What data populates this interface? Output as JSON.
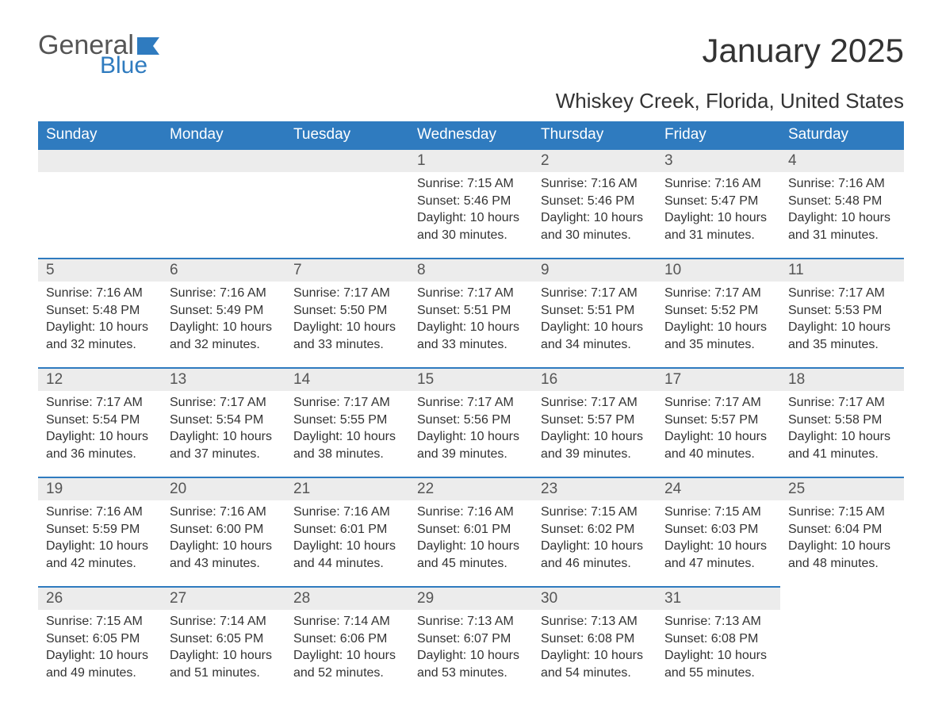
{
  "logo": {
    "general": "General",
    "blue": "Blue"
  },
  "title": "January 2025",
  "location": "Whiskey Creek, Florida, United States",
  "colors": {
    "header_bg": "#2f7bbf",
    "header_text": "#ffffff",
    "day_number_bg": "#ececec",
    "day_border_top": "#2f7bbf",
    "body_text": "#333333",
    "logo_gray": "#555555",
    "logo_blue": "#2f7bbf",
    "background": "#ffffff"
  },
  "typography": {
    "title_fontsize": 42,
    "location_fontsize": 26,
    "header_fontsize": 19,
    "daynum_fontsize": 19,
    "body_fontsize": 16
  },
  "day_headers": [
    "Sunday",
    "Monday",
    "Tuesday",
    "Wednesday",
    "Thursday",
    "Friday",
    "Saturday"
  ],
  "weeks": [
    [
      null,
      null,
      null,
      {
        "n": "1",
        "sunrise": "7:15 AM",
        "sunset": "5:46 PM",
        "daylight": "10 hours and 30 minutes."
      },
      {
        "n": "2",
        "sunrise": "7:16 AM",
        "sunset": "5:46 PM",
        "daylight": "10 hours and 30 minutes."
      },
      {
        "n": "3",
        "sunrise": "7:16 AM",
        "sunset": "5:47 PM",
        "daylight": "10 hours and 31 minutes."
      },
      {
        "n": "4",
        "sunrise": "7:16 AM",
        "sunset": "5:48 PM",
        "daylight": "10 hours and 31 minutes."
      }
    ],
    [
      {
        "n": "5",
        "sunrise": "7:16 AM",
        "sunset": "5:48 PM",
        "daylight": "10 hours and 32 minutes."
      },
      {
        "n": "6",
        "sunrise": "7:16 AM",
        "sunset": "5:49 PM",
        "daylight": "10 hours and 32 minutes."
      },
      {
        "n": "7",
        "sunrise": "7:17 AM",
        "sunset": "5:50 PM",
        "daylight": "10 hours and 33 minutes."
      },
      {
        "n": "8",
        "sunrise": "7:17 AM",
        "sunset": "5:51 PM",
        "daylight": "10 hours and 33 minutes."
      },
      {
        "n": "9",
        "sunrise": "7:17 AM",
        "sunset": "5:51 PM",
        "daylight": "10 hours and 34 minutes."
      },
      {
        "n": "10",
        "sunrise": "7:17 AM",
        "sunset": "5:52 PM",
        "daylight": "10 hours and 35 minutes."
      },
      {
        "n": "11",
        "sunrise": "7:17 AM",
        "sunset": "5:53 PM",
        "daylight": "10 hours and 35 minutes."
      }
    ],
    [
      {
        "n": "12",
        "sunrise": "7:17 AM",
        "sunset": "5:54 PM",
        "daylight": "10 hours and 36 minutes."
      },
      {
        "n": "13",
        "sunrise": "7:17 AM",
        "sunset": "5:54 PM",
        "daylight": "10 hours and 37 minutes."
      },
      {
        "n": "14",
        "sunrise": "7:17 AM",
        "sunset": "5:55 PM",
        "daylight": "10 hours and 38 minutes."
      },
      {
        "n": "15",
        "sunrise": "7:17 AM",
        "sunset": "5:56 PM",
        "daylight": "10 hours and 39 minutes."
      },
      {
        "n": "16",
        "sunrise": "7:17 AM",
        "sunset": "5:57 PM",
        "daylight": "10 hours and 39 minutes."
      },
      {
        "n": "17",
        "sunrise": "7:17 AM",
        "sunset": "5:57 PM",
        "daylight": "10 hours and 40 minutes."
      },
      {
        "n": "18",
        "sunrise": "7:17 AM",
        "sunset": "5:58 PM",
        "daylight": "10 hours and 41 minutes."
      }
    ],
    [
      {
        "n": "19",
        "sunrise": "7:16 AM",
        "sunset": "5:59 PM",
        "daylight": "10 hours and 42 minutes."
      },
      {
        "n": "20",
        "sunrise": "7:16 AM",
        "sunset": "6:00 PM",
        "daylight": "10 hours and 43 minutes."
      },
      {
        "n": "21",
        "sunrise": "7:16 AM",
        "sunset": "6:01 PM",
        "daylight": "10 hours and 44 minutes."
      },
      {
        "n": "22",
        "sunrise": "7:16 AM",
        "sunset": "6:01 PM",
        "daylight": "10 hours and 45 minutes."
      },
      {
        "n": "23",
        "sunrise": "7:15 AM",
        "sunset": "6:02 PM",
        "daylight": "10 hours and 46 minutes."
      },
      {
        "n": "24",
        "sunrise": "7:15 AM",
        "sunset": "6:03 PM",
        "daylight": "10 hours and 47 minutes."
      },
      {
        "n": "25",
        "sunrise": "7:15 AM",
        "sunset": "6:04 PM",
        "daylight": "10 hours and 48 minutes."
      }
    ],
    [
      {
        "n": "26",
        "sunrise": "7:15 AM",
        "sunset": "6:05 PM",
        "daylight": "10 hours and 49 minutes."
      },
      {
        "n": "27",
        "sunrise": "7:14 AM",
        "sunset": "6:05 PM",
        "daylight": "10 hours and 51 minutes."
      },
      {
        "n": "28",
        "sunrise": "7:14 AM",
        "sunset": "6:06 PM",
        "daylight": "10 hours and 52 minutes."
      },
      {
        "n": "29",
        "sunrise": "7:13 AM",
        "sunset": "6:07 PM",
        "daylight": "10 hours and 53 minutes."
      },
      {
        "n": "30",
        "sunrise": "7:13 AM",
        "sunset": "6:08 PM",
        "daylight": "10 hours and 54 minutes."
      },
      {
        "n": "31",
        "sunrise": "7:13 AM",
        "sunset": "6:08 PM",
        "daylight": "10 hours and 55 minutes."
      },
      null
    ]
  ],
  "labels": {
    "sunrise": "Sunrise:",
    "sunset": "Sunset:",
    "daylight": "Daylight:"
  }
}
